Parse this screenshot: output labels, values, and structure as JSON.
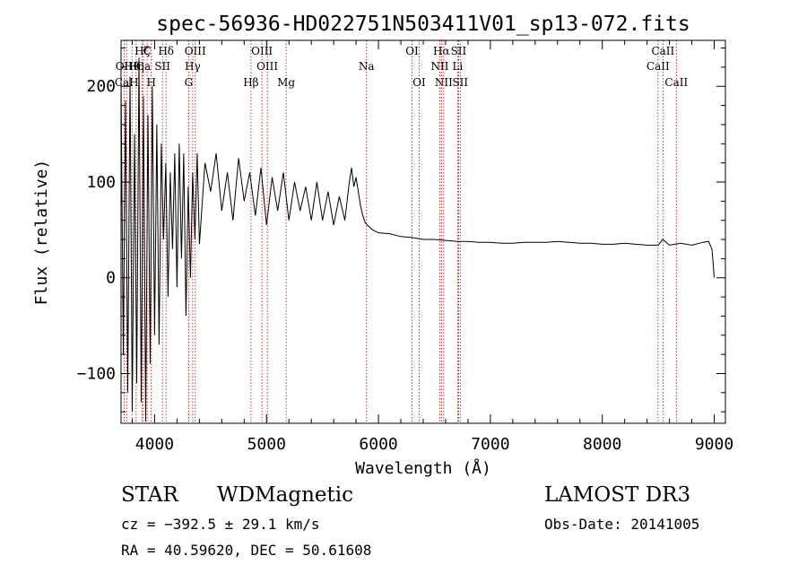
{
  "chart_data": {
    "type": "line",
    "title": "spec-56936-HD022751N503411V01_sp13-072.fits",
    "xlabel": "Wavelength (Å)",
    "ylabel": "Flux (relative)",
    "xlim": [
      3700,
      9100
    ],
    "ylim": [
      -152,
      248
    ],
    "x_ticks": [
      4000,
      5000,
      6000,
      7000,
      8000,
      9000
    ],
    "x_tick_labels": [
      "4000",
      "5000",
      "6000",
      "7000",
      "8000",
      "9000"
    ],
    "y_ticks": [
      -100,
      0,
      100,
      200
    ],
    "y_tick_labels": [
      "−100",
      "0",
      "100",
      "200"
    ],
    "grid": false,
    "line_color": "#000000",
    "marker_color": "#cc0000",
    "series": [
      {
        "name": "spectrum",
        "x": [
          3700,
          3720,
          3740,
          3760,
          3780,
          3800,
          3820,
          3840,
          3860,
          3880,
          3900,
          3920,
          3940,
          3960,
          3980,
          4000,
          4020,
          4040,
          4060,
          4080,
          4100,
          4120,
          4140,
          4160,
          4180,
          4200,
          4220,
          4240,
          4260,
          4280,
          4300,
          4320,
          4340,
          4360,
          4380,
          4400,
          4450,
          4500,
          4550,
          4600,
          4650,
          4700,
          4750,
          4800,
          4850,
          4900,
          4950,
          5000,
          5050,
          5100,
          5150,
          5200,
          5250,
          5300,
          5350,
          5400,
          5450,
          5500,
          5550,
          5600,
          5650,
          5700,
          5740,
          5760,
          5780,
          5800,
          5820,
          5840,
          5860,
          5880,
          5900,
          5950,
          6000,
          6100,
          6200,
          6300,
          6400,
          6500,
          6600,
          6700,
          6800,
          6900,
          7000,
          7100,
          7200,
          7300,
          7400,
          7500,
          7600,
          7700,
          7800,
          7900,
          8000,
          8100,
          8200,
          8300,
          8400,
          8500,
          8540,
          8600,
          8700,
          8800,
          8900,
          8950,
          8980,
          8990,
          9000
        ],
        "y": [
          205,
          -80,
          185,
          -120,
          210,
          -140,
          150,
          -110,
          230,
          -130,
          190,
          -150,
          170,
          -90,
          200,
          -60,
          160,
          -70,
          140,
          40,
          120,
          -20,
          110,
          30,
          130,
          -10,
          140,
          20,
          130,
          -40,
          95,
          0,
          110,
          40,
          130,
          35,
          120,
          90,
          130,
          70,
          110,
          60,
          125,
          80,
          110,
          65,
          115,
          55,
          105,
          70,
          110,
          60,
          100,
          70,
          95,
          60,
          100,
          60,
          90,
          55,
          85,
          60,
          100,
          115,
          95,
          105,
          90,
          75,
          65,
          58,
          55,
          50,
          47,
          46,
          43,
          42,
          40,
          40,
          39,
          38,
          38,
          37,
          37,
          36,
          36,
          37,
          37,
          37,
          38,
          37,
          36,
          36,
          35,
          35,
          36,
          35,
          34,
          34,
          40,
          34,
          36,
          34,
          37,
          38,
          30,
          15,
          0
        ]
      }
    ],
    "lines": [
      {
        "name": "Hζ",
        "x": 3889,
        "row": 1
      },
      {
        "name": "C",
        "x": 3933,
        "row": 1
      },
      {
        "name": "Hδ",
        "x": 4102,
        "row": 1
      },
      {
        "name": "OIII",
        "x": 4363,
        "row": 1
      },
      {
        "name": "OIII",
        "x": 4959,
        "row": 1
      },
      {
        "name": "OI",
        "x": 6300,
        "row": 1
      },
      {
        "name": "Hα",
        "x": 6563,
        "row": 1
      },
      {
        "name": "SII",
        "x": 6716,
        "row": 1
      },
      {
        "name": "CaII",
        "x": 8542,
        "row": 1
      },
      {
        "name": "OII",
        "x": 3727,
        "row": 2
      },
      {
        "name": "Hθ",
        "x": 3798,
        "row": 2
      },
      {
        "name": "Hη",
        "x": 3835,
        "row": 2
      },
      {
        "name": "Ca",
        "x": 3900,
        "row": 2
      },
      {
        "name": "SII",
        "x": 4070,
        "row": 2
      },
      {
        "name": "Hγ",
        "x": 4340,
        "row": 2
      },
      {
        "name": "OIII",
        "x": 5007,
        "row": 2
      },
      {
        "name": "Na",
        "x": 5893,
        "row": 2
      },
      {
        "name": "NII",
        "x": 6548,
        "row": 2
      },
      {
        "name": "Li",
        "x": 6708,
        "row": 2
      },
      {
        "name": "CaII",
        "x": 8498,
        "row": 2
      },
      {
        "name": "CaH",
        "x": 3750,
        "row": 3
      },
      {
        "name": "H",
        "x": 3970,
        "row": 3
      },
      {
        "name": "G",
        "x": 4304,
        "row": 3
      },
      {
        "name": "Hβ",
        "x": 4861,
        "row": 3
      },
      {
        "name": "Mg",
        "x": 5175,
        "row": 3
      },
      {
        "name": "OI",
        "x": 6364,
        "row": 3
      },
      {
        "name": "NII",
        "x": 6583,
        "row": 3
      },
      {
        "name": "SII",
        "x": 6731,
        "row": 3
      },
      {
        "name": "CaII",
        "x": 8662,
        "row": 3
      }
    ]
  },
  "info": {
    "class": "STAR",
    "subclass": "WDMagnetic",
    "survey": "LAMOST DR3",
    "cz": "cz = −392.5 ± 29.1 km/s",
    "obs_date": "Obs-Date: 20141005",
    "radec": "RA =  40.59620, DEC =  50.61608"
  }
}
